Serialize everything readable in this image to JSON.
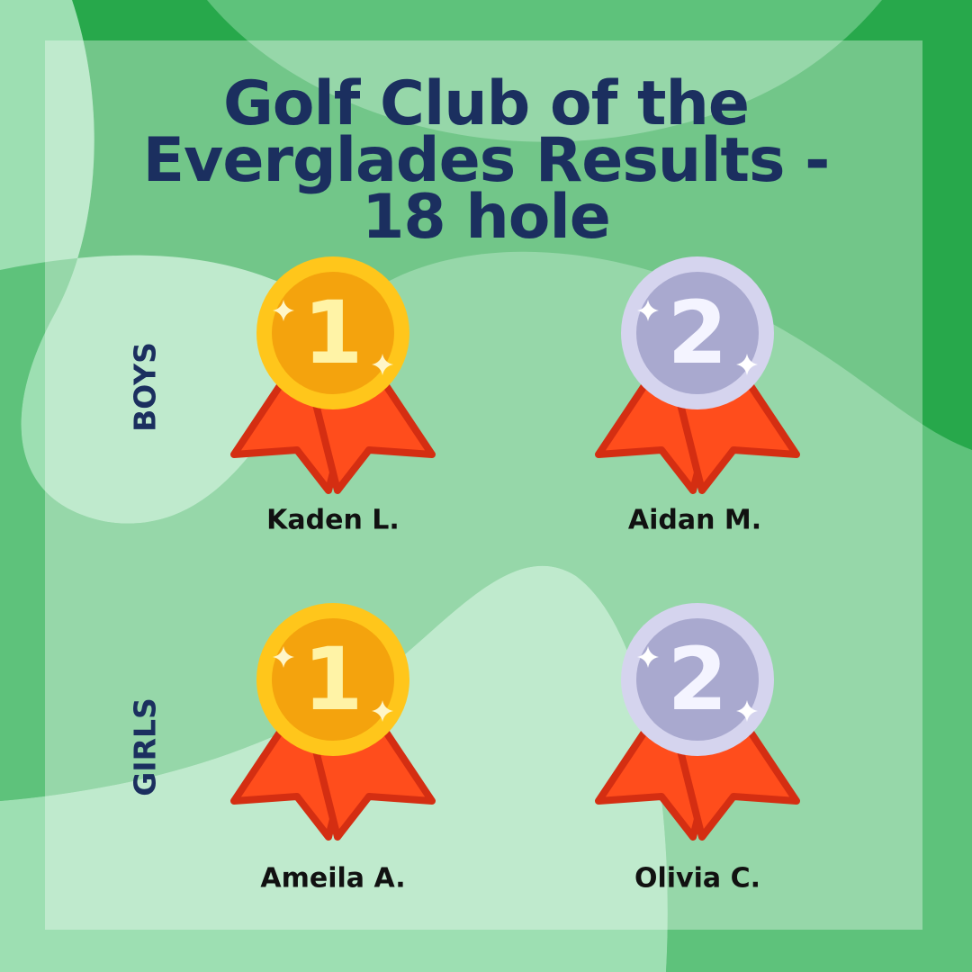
{
  "title": "Golf Club of the Everglades Results - 18 hole",
  "groups": [
    {
      "label": "BOYS",
      "winners": [
        {
          "place": 1,
          "name": "Kaden L."
        },
        {
          "place": 2,
          "name": "Aidan M."
        }
      ]
    },
    {
      "label": "GIRLS",
      "winners": [
        {
          "place": 1,
          "name": "Ameila A."
        },
        {
          "place": 2,
          "name": "Olivia C."
        }
      ]
    }
  ]
}
